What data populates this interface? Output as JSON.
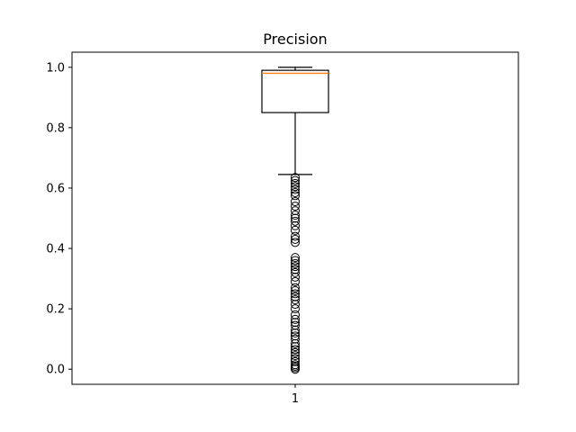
{
  "chart_data": {
    "type": "box",
    "title": "Precision",
    "xlabel": "",
    "ylabel": "",
    "categories": [
      "1"
    ],
    "ylim": [
      -0.05,
      1.05
    ],
    "y_ticks": [
      0.0,
      0.2,
      0.4,
      0.6,
      0.8,
      1.0
    ],
    "y_tick_labels": [
      "0.0",
      "0.2",
      "0.4",
      "0.6",
      "0.8",
      "1.0"
    ],
    "grid": false,
    "box": {
      "whisker_low": 0.645,
      "q1": 0.85,
      "median": 0.98,
      "q3": 0.99,
      "whisker_high": 1.0
    },
    "outliers": [
      0.635,
      0.625,
      0.615,
      0.605,
      0.595,
      0.585,
      0.575,
      0.555,
      0.54,
      0.525,
      0.51,
      0.5,
      0.49,
      0.475,
      0.46,
      0.44,
      0.43,
      0.42,
      0.37,
      0.36,
      0.35,
      0.34,
      0.33,
      0.32,
      0.305,
      0.29,
      0.27,
      0.26,
      0.25,
      0.24,
      0.23,
      0.215,
      0.2,
      0.18,
      0.165,
      0.155,
      0.145,
      0.13,
      0.12,
      0.11,
      0.1,
      0.085,
      0.075,
      0.065,
      0.055,
      0.045,
      0.035,
      0.025,
      0.015,
      0.01,
      0.005,
      0.0
    ],
    "colors": {
      "box": "#000000",
      "median": "#ff7f0e",
      "outlier": "#000000"
    }
  }
}
